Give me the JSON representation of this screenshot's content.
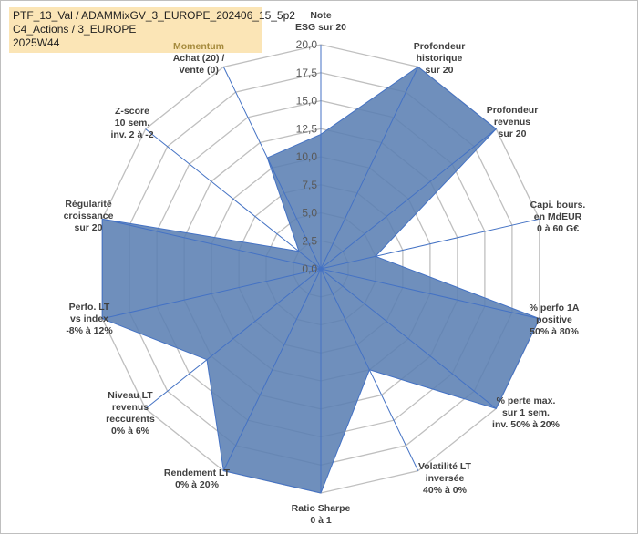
{
  "header": {
    "lines": [
      "PTF_13_Val / ADAMMixGV_3_EUROPE_202406_15_5p2",
      "C4_Actions / 3_EUROPE",
      "2025W44"
    ]
  },
  "chart_data": {
    "type": "radar",
    "axis_labels": [
      [
        "Note",
        "ESG sur 20"
      ],
      [
        "Profondeur",
        "historique",
        "sur 20"
      ],
      [
        "Profondeur",
        "revenus",
        "sur 20"
      ],
      [
        "Capi. bours.",
        "en MdEUR",
        "0 à 60 G€"
      ],
      [
        "% perfo 1A",
        "positive",
        "50% à 80%"
      ],
      [
        "% perte max.",
        "sur 1 sem.",
        "inv. 50% à 20%"
      ],
      [
        "Volatilité LT",
        "inversée",
        "40% à 0%"
      ],
      [
        "Ratio Sharpe",
        "0 à 1"
      ],
      [
        "Rendement LT",
        "0% à 20%"
      ],
      [
        "Niveau LT",
        "revenus",
        "reccurents",
        "0% à 6%"
      ],
      [
        "Perfo. LT",
        "vs index",
        "-8% à 12%"
      ],
      [
        "Régularité",
        "croissance",
        "sur 20"
      ],
      [
        "Z-score",
        "10 sem.",
        "inv. 2 à -2"
      ],
      [
        "Momentum",
        "Achat (20) /",
        "Vente (0)"
      ]
    ],
    "tick_labels": [
      "0,0",
      "2,5",
      "5,0",
      "7,5",
      "10,0",
      "12,5",
      "15,0",
      "17,5",
      "20,0"
    ],
    "ylim": [
      0,
      20
    ],
    "series": [
      {
        "values": [
          12,
          20,
          20,
          5,
          20,
          20,
          10,
          20,
          20,
          13,
          20,
          20,
          2.5,
          11
        ]
      }
    ],
    "grid": true,
    "colors": {
      "fill": "#5b80b3",
      "line": "#4472c4",
      "grid": "#bfbfbf",
      "title_bg": "#fbe5b6"
    }
  }
}
